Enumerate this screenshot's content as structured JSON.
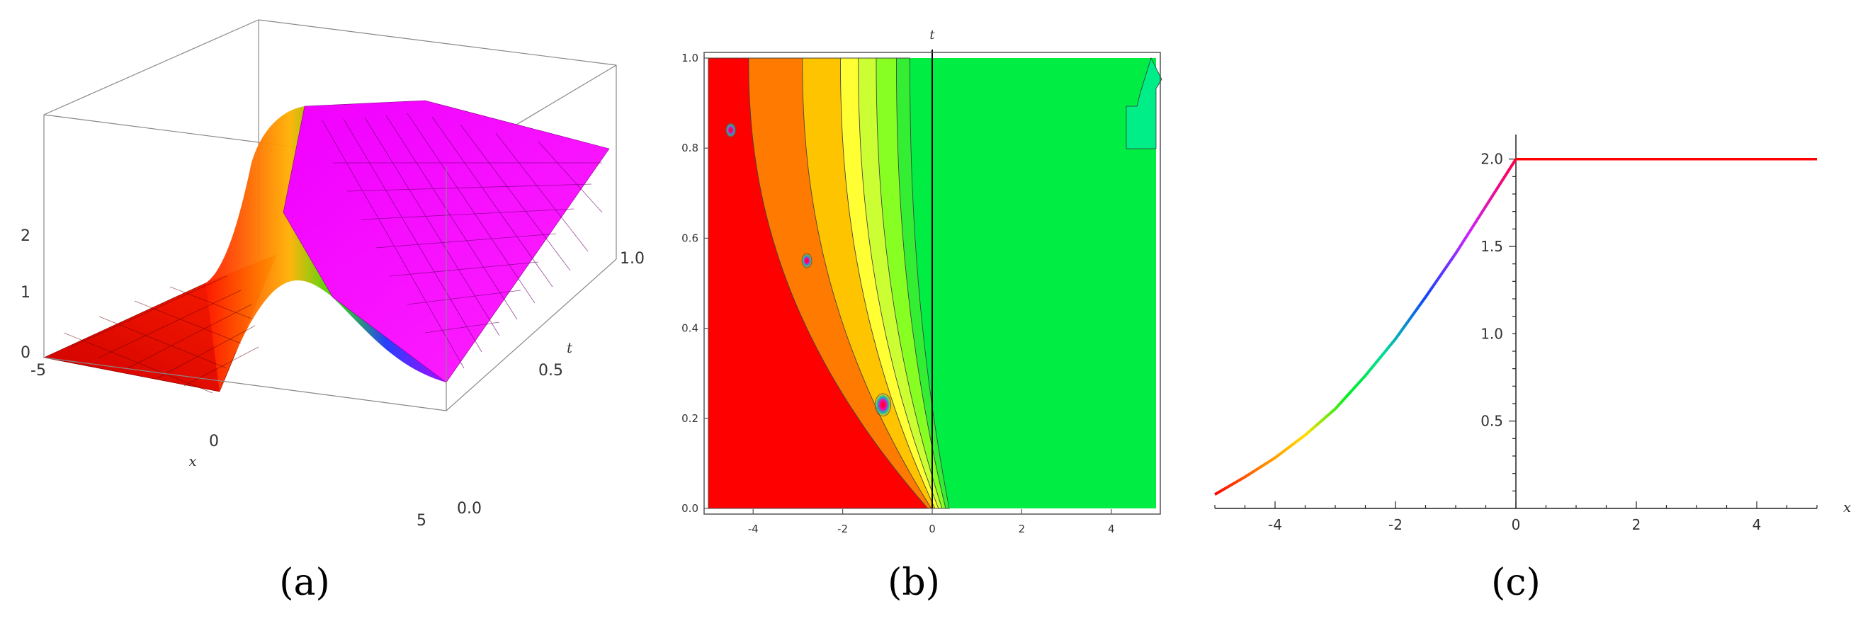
{
  "captions": [
    "(a)",
    "(b)",
    "(c)"
  ],
  "colors": {
    "left_state": "#ff0000",
    "right_state": "#ff00ff",
    "contour_right": "#00ee44",
    "line_color": "#ff0000",
    "axis": "#555555"
  },
  "chart_data": [
    {
      "type": "surface3d",
      "title": "",
      "xlabel": "x",
      "ylabel": "t",
      "zlabel": "",
      "xlim": [
        -5,
        5
      ],
      "ylim": [
        0,
        1
      ],
      "zlim": [
        0,
        2
      ],
      "x_ticks": [
        "-5",
        "0",
        "5"
      ],
      "y_ticks": [
        "0.0",
        "0.5",
        "1.0"
      ],
      "z_ticks": [
        "0",
        "1",
        "2"
      ],
      "description_values": {
        "left_plateau_u": 0,
        "right_plateau_u": 2
      }
    },
    {
      "type": "contour",
      "title": "",
      "xlabel": "",
      "ylabel": "t",
      "xlim": [
        -5,
        5
      ],
      "ylim": [
        0,
        1
      ],
      "x_ticks": [
        "-4",
        "-2",
        "0",
        "2",
        "4"
      ],
      "y_ticks": [
        "0.0",
        "0.2",
        "0.4",
        "0.6",
        "0.8",
        "1.0"
      ],
      "vertical_line_x": 0,
      "contour_boundaries_at_t1": [
        -4.1,
        -2.9,
        -2.05,
        -1.65,
        -1.25,
        -0.8,
        -0.5
      ],
      "band_colors": [
        "#ff0000",
        "#ff7a00",
        "#ffc400",
        "#ffff33",
        "#ccff33",
        "#88ff22",
        "#33ee33",
        "#00ee44"
      ],
      "spots": [
        {
          "x": -1.1,
          "t": 0.23
        },
        {
          "x": -2.8,
          "t": 0.55
        },
        {
          "x": -4.5,
          "t": 0.84
        }
      ]
    },
    {
      "type": "line",
      "title": "",
      "xlabel": "x",
      "ylabel": "",
      "xlim": [
        -5,
        5
      ],
      "ylim": [
        0,
        2.1
      ],
      "x_ticks": [
        "-4",
        "-2",
        "0",
        "2",
        "4"
      ],
      "y_ticks": [
        "0.5",
        "1.0",
        "1.5",
        "2.0"
      ],
      "x": [
        -5.0,
        -4.5,
        -4.0,
        -3.5,
        -3.0,
        -2.5,
        -2.0,
        -1.5,
        -1.0,
        -0.5,
        0.0,
        1.0,
        2.0,
        3.0,
        4.0,
        5.0
      ],
      "y": [
        0.08,
        0.18,
        0.29,
        0.42,
        0.57,
        0.76,
        0.97,
        1.21,
        1.46,
        1.73,
        2.0,
        2.0,
        2.0,
        2.0,
        2.0,
        2.0
      ]
    }
  ]
}
